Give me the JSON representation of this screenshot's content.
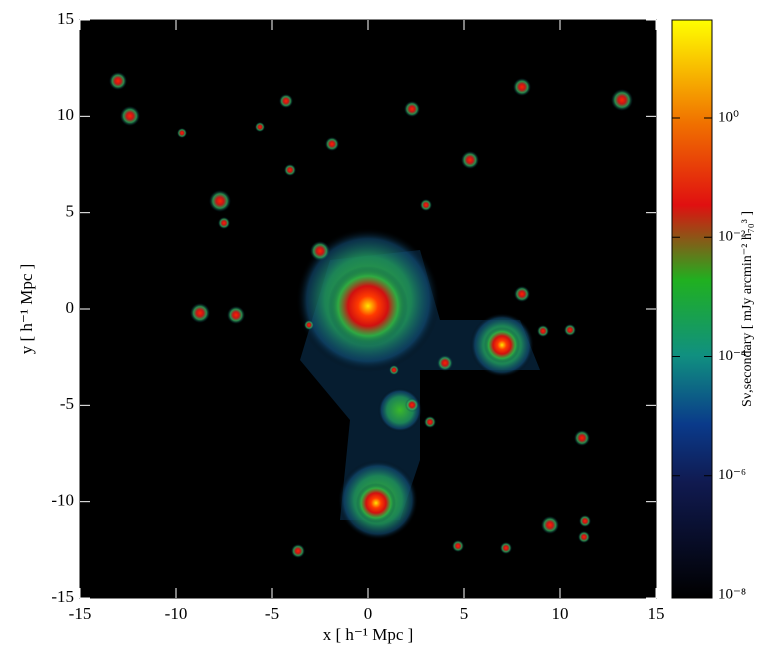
{
  "chart_data": {
    "type": "image",
    "xlabel": "x [ h⁻¹ Mpc ]",
    "ylabel": "y [ h⁻¹ Mpc ]",
    "colorbar_label": "Sν,secondary [ mJy arcmin⁻² h₇₀³ ]",
    "xlim": [
      -15,
      15
    ],
    "ylim": [
      -15,
      15
    ],
    "xticks": [
      -15,
      -10,
      -5,
      0,
      5,
      10,
      15
    ],
    "yticks": [
      -15,
      -10,
      -5,
      0,
      5,
      10,
      15
    ],
    "zscale": "log",
    "zlim": [
      8.9e-09,
      44
    ],
    "zticks": [
      {
        "value": 1e-08,
        "label": "10⁻⁸"
      },
      {
        "value": 1e-06,
        "label": "10⁻⁶"
      },
      {
        "value": 0.0001,
        "label": "10⁻⁴"
      },
      {
        "value": 0.01,
        "label": "10⁻²"
      },
      {
        "value": 1,
        "label": "10⁰"
      }
    ]
  }
}
